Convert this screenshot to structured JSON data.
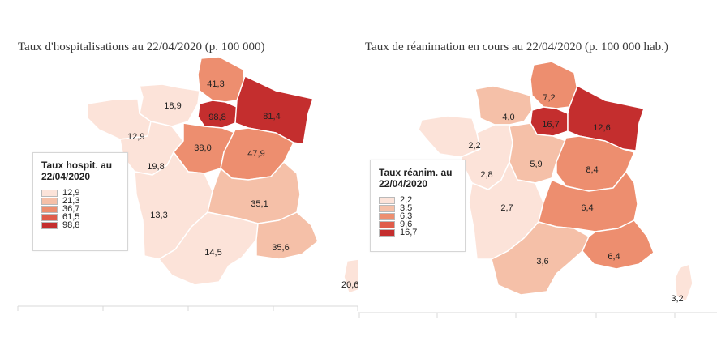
{
  "left_map": {
    "title": "Taux d'hospitalisations au 22/04/2020 (p. 100 000)",
    "legend_title_line1": "Taux hospit. au",
    "legend_title_line2": "22/04/2020",
    "legend": [
      {
        "value": "12,9",
        "color": "#fce3d9"
      },
      {
        "value": "21,3",
        "color": "#f5c0a8"
      },
      {
        "value": "36,7",
        "color": "#ed8e6f"
      },
      {
        "value": "61,5",
        "color": "#e05c4a"
      },
      {
        "value": "98,8",
        "color": "#c42e2e"
      }
    ],
    "regions": [
      {
        "name": "Bretagne",
        "label": "12,9",
        "color": "#fce3d9"
      },
      {
        "name": "Normandie",
        "label": "18,9",
        "color": "#fce3d9"
      },
      {
        "name": "Pays de la Loire",
        "label": "19,8",
        "color": "#fce3d9"
      },
      {
        "name": "Hauts-de-France",
        "label": "41,3",
        "color": "#ed8e6f"
      },
      {
        "name": "Ile-de-France",
        "label": "98,8",
        "color": "#c42e2e"
      },
      {
        "name": "Grand Est",
        "label": "81,4",
        "color": "#c42e2e"
      },
      {
        "name": "Centre-Val de Loire",
        "label": "38,0",
        "color": "#ed8e6f"
      },
      {
        "name": "Bourgogne-Franche-Comte",
        "label": "47,9",
        "color": "#ed8e6f"
      },
      {
        "name": "Nouvelle-Aquitaine",
        "label": "13,3",
        "color": "#fce3d9"
      },
      {
        "name": "Auvergne-Rhone-Alpes",
        "label": "35,1",
        "color": "#f5c0a8"
      },
      {
        "name": "Occitanie",
        "label": "14,5",
        "color": "#fce3d9"
      },
      {
        "name": "Provence-Alpes-Cote d'Azur",
        "label": "35,6",
        "color": "#f5c0a8"
      },
      {
        "name": "Corse",
        "label": "20,6",
        "color": "#fce3d9"
      }
    ]
  },
  "right_map": {
    "title": "Taux de réanimation en cours au 22/04/2020 (p. 100 000 hab.)",
    "legend_title_line1": "Taux réanim. au",
    "legend_title_line2": "22/04/2020",
    "legend": [
      {
        "value": "2,2",
        "color": "#fce3d9"
      },
      {
        "value": "3,5",
        "color": "#f5c0a8"
      },
      {
        "value": "6,3",
        "color": "#ed8e6f"
      },
      {
        "value": "9,6",
        "color": "#e05c4a"
      },
      {
        "value": "16,7",
        "color": "#c42e2e"
      }
    ],
    "regions": [
      {
        "name": "Bretagne",
        "label": "2,2",
        "color": "#fce3d9"
      },
      {
        "name": "Normandie",
        "label": "4,0",
        "color": "#f5c0a8"
      },
      {
        "name": "Pays de la Loire",
        "label": "2,8",
        "color": "#fce3d9"
      },
      {
        "name": "Hauts-de-France",
        "label": "7,2",
        "color": "#ed8e6f"
      },
      {
        "name": "Ile-de-France",
        "label": "16,7",
        "color": "#c42e2e"
      },
      {
        "name": "Grand Est",
        "label": "12,6",
        "color": "#c42e2e"
      },
      {
        "name": "Centre-Val de Loire",
        "label": "5,9",
        "color": "#f5c0a8"
      },
      {
        "name": "Bourgogne-Franche-Comte",
        "label": "8,4",
        "color": "#ed8e6f"
      },
      {
        "name": "Nouvelle-Aquitaine",
        "label": "2,7",
        "color": "#fce3d9"
      },
      {
        "name": "Auvergne-Rhone-Alpes",
        "label": "6,4",
        "color": "#ed8e6f"
      },
      {
        "name": "Occitanie",
        "label": "3,6",
        "color": "#f5c0a8"
      },
      {
        "name": "Provence-Alpes-Cote d'Azur",
        "label": "6,4",
        "color": "#ed8e6f"
      },
      {
        "name": "Corse",
        "label": "3,2",
        "color": "#fce3d9"
      }
    ]
  }
}
